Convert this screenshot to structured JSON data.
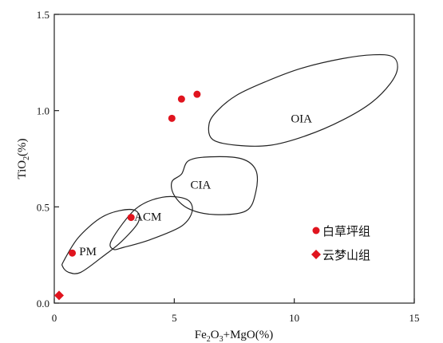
{
  "chart_data": {
    "type": "scatter",
    "xlabel_parts": [
      "Fe",
      "2",
      "O",
      "3",
      "+MgO(%)"
    ],
    "ylabel_parts": [
      "TiO",
      "2",
      "(%)"
    ],
    "xlim": [
      0,
      15
    ],
    "ylim": [
      0,
      1.5
    ],
    "x_ticks": [
      {
        "value": 0,
        "label": "0"
      },
      {
        "value": 5,
        "label": "5"
      },
      {
        "value": 10,
        "label": "10"
      },
      {
        "value": 15,
        "label": "15"
      }
    ],
    "y_ticks": [
      {
        "value": 0,
        "label": "0.0"
      },
      {
        "value": 0.5,
        "label": "0.5"
      },
      {
        "value": 1.0,
        "label": "1.0"
      },
      {
        "value": 1.5,
        "label": "1.5"
      }
    ],
    "regions": [
      {
        "name": "OIA",
        "label_at": [
          10.3,
          0.96
        ],
        "outline": [
          [
            6.6,
            0.85
          ],
          [
            7.6,
            0.82
          ],
          [
            9.0,
            0.82
          ],
          [
            10.5,
            0.87
          ],
          [
            12.0,
            0.95
          ],
          [
            13.2,
            1.04
          ],
          [
            14.0,
            1.14
          ],
          [
            14.3,
            1.22
          ],
          [
            14.1,
            1.28
          ],
          [
            13.3,
            1.29
          ],
          [
            12.0,
            1.27
          ],
          [
            10.3,
            1.22
          ],
          [
            8.8,
            1.15
          ],
          [
            7.6,
            1.08
          ],
          [
            6.8,
            1.0
          ],
          [
            6.45,
            0.93
          ]
        ]
      },
      {
        "name": "CIA",
        "label_at": [
          6.1,
          0.615
        ],
        "outline": [
          [
            5.3,
            0.67
          ],
          [
            5.6,
            0.74
          ],
          [
            6.5,
            0.76
          ],
          [
            7.8,
            0.75
          ],
          [
            8.4,
            0.69
          ],
          [
            8.4,
            0.58
          ],
          [
            8.0,
            0.48
          ],
          [
            6.7,
            0.46
          ],
          [
            5.6,
            0.49
          ],
          [
            5.0,
            0.56
          ],
          [
            4.9,
            0.63
          ]
        ]
      },
      {
        "name": "ACM",
        "label_at": [
          3.9,
          0.45
        ],
        "outline": [
          [
            2.4,
            0.33
          ],
          [
            3.4,
            0.49
          ],
          [
            4.5,
            0.55
          ],
          [
            5.5,
            0.54
          ],
          [
            5.75,
            0.48
          ],
          [
            5.3,
            0.4
          ],
          [
            4.0,
            0.33
          ],
          [
            2.9,
            0.29
          ],
          [
            2.45,
            0.28
          ]
        ]
      },
      {
        "name": "PM",
        "label_at": [
          1.4,
          0.27
        ],
        "outline": [
          [
            0.4,
            0.22
          ],
          [
            1.0,
            0.34
          ],
          [
            1.9,
            0.44
          ],
          [
            2.7,
            0.48
          ],
          [
            3.4,
            0.48
          ],
          [
            3.5,
            0.42
          ],
          [
            2.8,
            0.32
          ],
          [
            2.0,
            0.24
          ],
          [
            1.1,
            0.16
          ],
          [
            0.6,
            0.16
          ],
          [
            0.35,
            0.19
          ]
        ]
      }
    ],
    "series": [
      {
        "name": "白草坪组",
        "marker": "circle",
        "color": "#e0141e",
        "points": [
          [
            0.75,
            0.26
          ],
          [
            3.2,
            0.445
          ],
          [
            4.9,
            0.96
          ],
          [
            5.3,
            1.06
          ],
          [
            5.95,
            1.085
          ]
        ]
      },
      {
        "name": "云梦山组",
        "marker": "diamond",
        "color": "#e0141e",
        "points": [
          [
            0.2,
            0.04
          ]
        ]
      }
    ],
    "legend_position": "right-lower",
    "grid": false
  }
}
